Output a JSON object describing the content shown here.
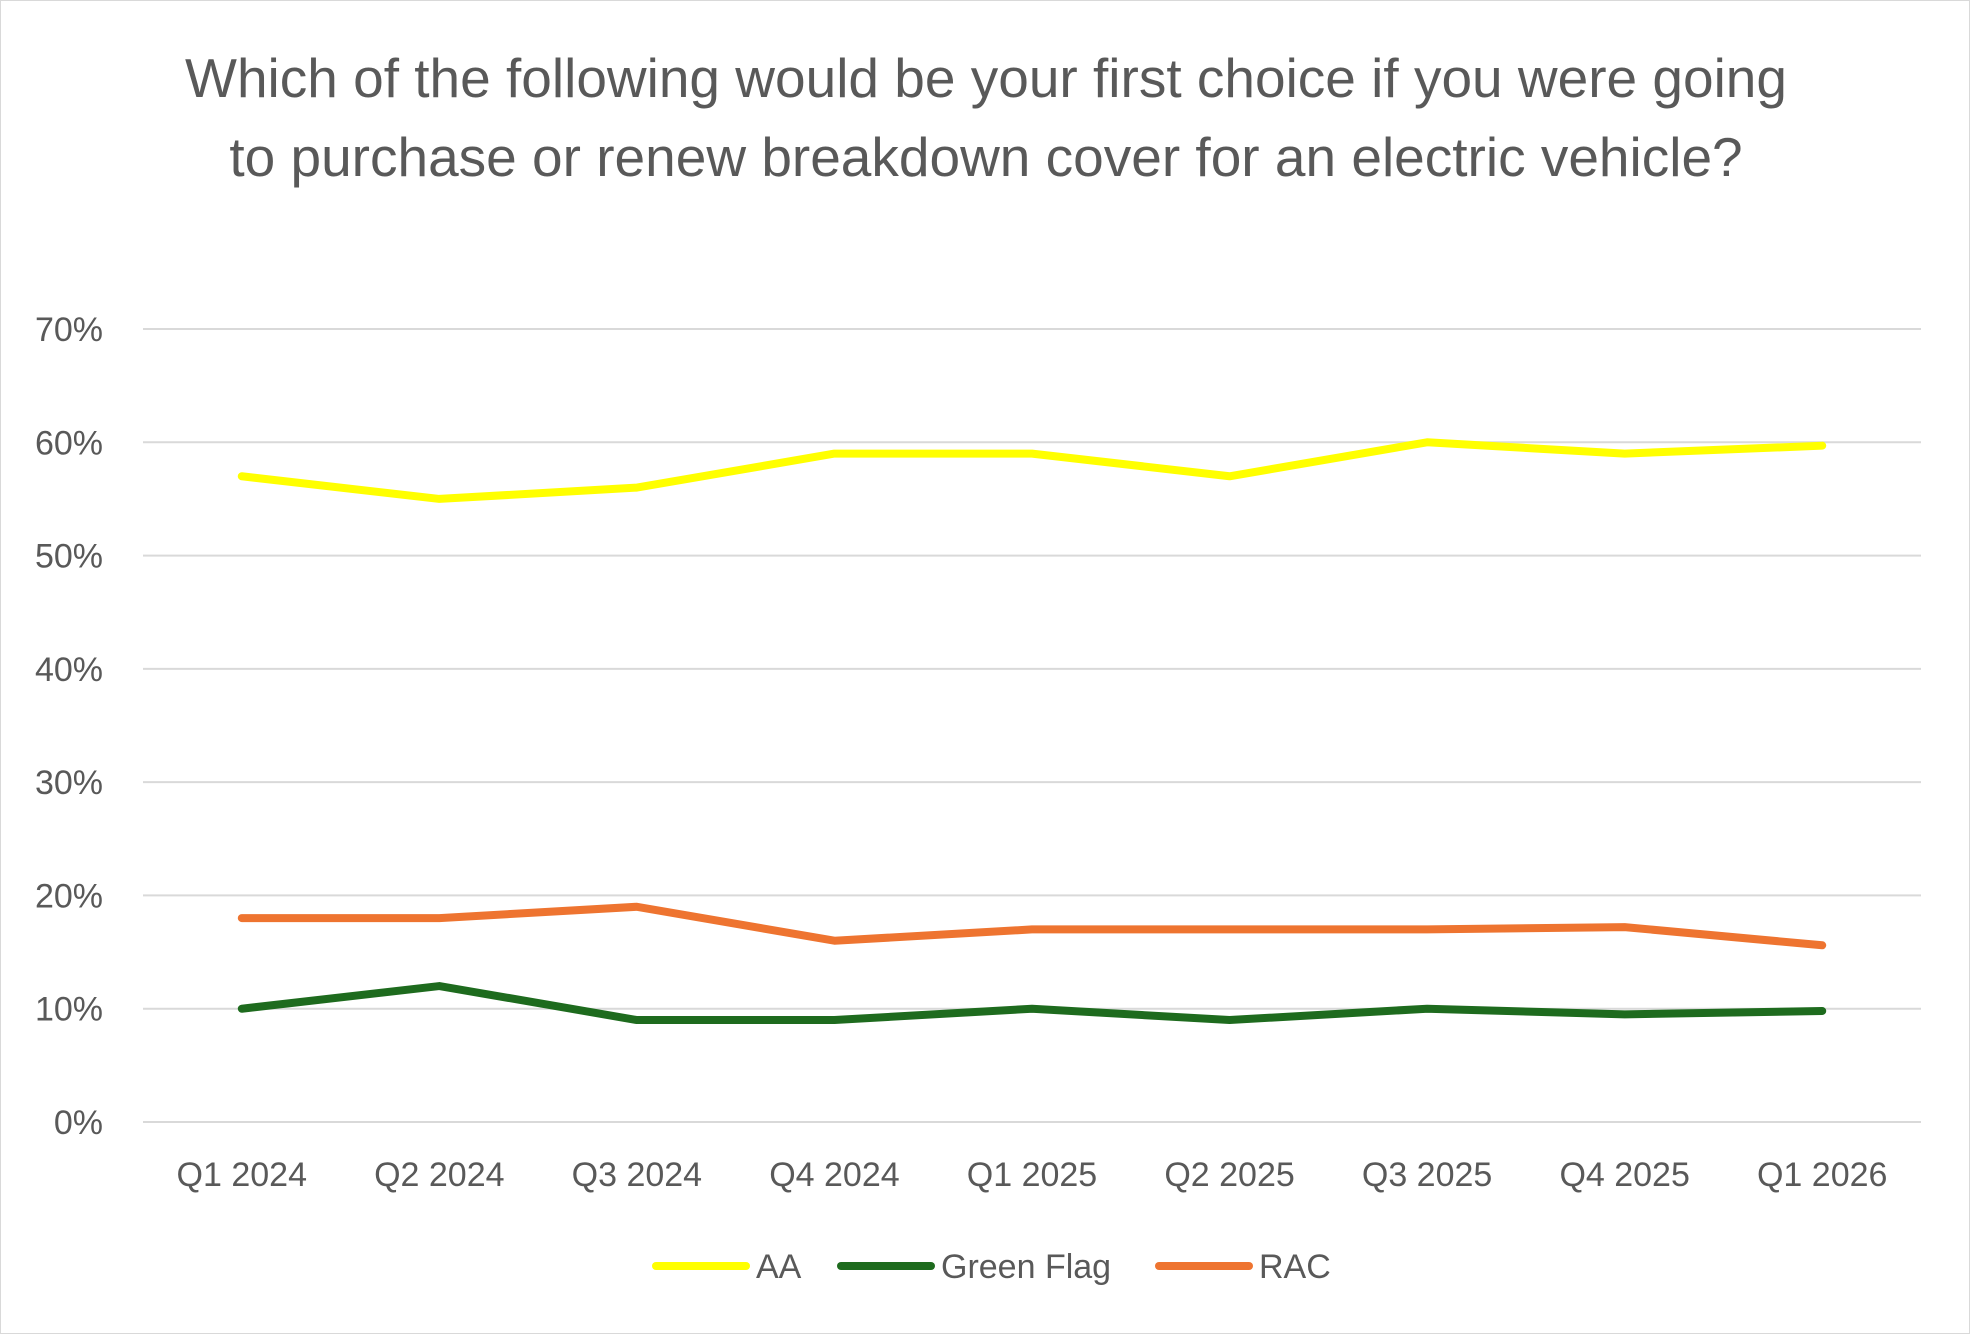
{
  "chart_data": {
    "type": "line",
    "title": "Which of the following would be your first choice if you were going to purchase or renew breakdown cover for an electric vehicle?",
    "xlabel": "",
    "ylabel": "",
    "categories": [
      "Q1 2024",
      "Q2 2024",
      "Q3 2024",
      "Q4 2024",
      "Q1 2025",
      "Q2 2025",
      "Q3 2025",
      "Q4 2025",
      "Q1 2026"
    ],
    "ylim": [
      0,
      70
    ],
    "yticks": [
      0,
      10,
      20,
      30,
      40,
      50,
      60,
      70
    ],
    "ytick_labels": [
      "0%",
      "10%",
      "20%",
      "30%",
      "40%",
      "50%",
      "60%",
      "70%"
    ],
    "grid": true,
    "legend_position": "bottom",
    "series": [
      {
        "name": "AA",
        "color": "#ffff00",
        "values": [
          57,
          55,
          56,
          59,
          59,
          57,
          60,
          59,
          59.7
        ]
      },
      {
        "name": "Green Flag",
        "color": "#1e6b1e",
        "values": [
          10,
          12,
          9,
          9,
          10,
          9,
          10,
          9.5,
          9.8
        ]
      },
      {
        "name": "RAC",
        "color": "#ee7430",
        "values": [
          18,
          18,
          19,
          16,
          17,
          17,
          17,
          17.2,
          15.6
        ]
      }
    ]
  }
}
